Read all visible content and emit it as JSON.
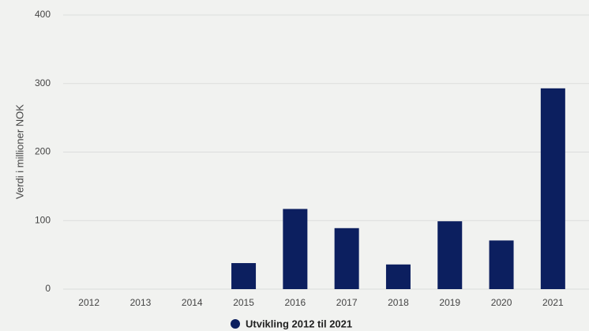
{
  "chart_data": {
    "type": "bar",
    "y_label": "Verdi i millioner NOK",
    "categories": [
      "2012",
      "2013",
      "2014",
      "2015",
      "2016",
      "2017",
      "2018",
      "2019",
      "2020",
      "2021"
    ],
    "series": [
      {
        "name": "Utvikling 2012 til 2021",
        "color": "#0c1f5f",
        "values": [
          0,
          0,
          0,
          38,
          117,
          89,
          36,
          99,
          71,
          293
        ]
      }
    ],
    "ylim": [
      0,
      400
    ],
    "yticks": [
      0,
      100,
      200,
      300,
      400
    ],
    "grid": true,
    "legend": "bottom"
  }
}
